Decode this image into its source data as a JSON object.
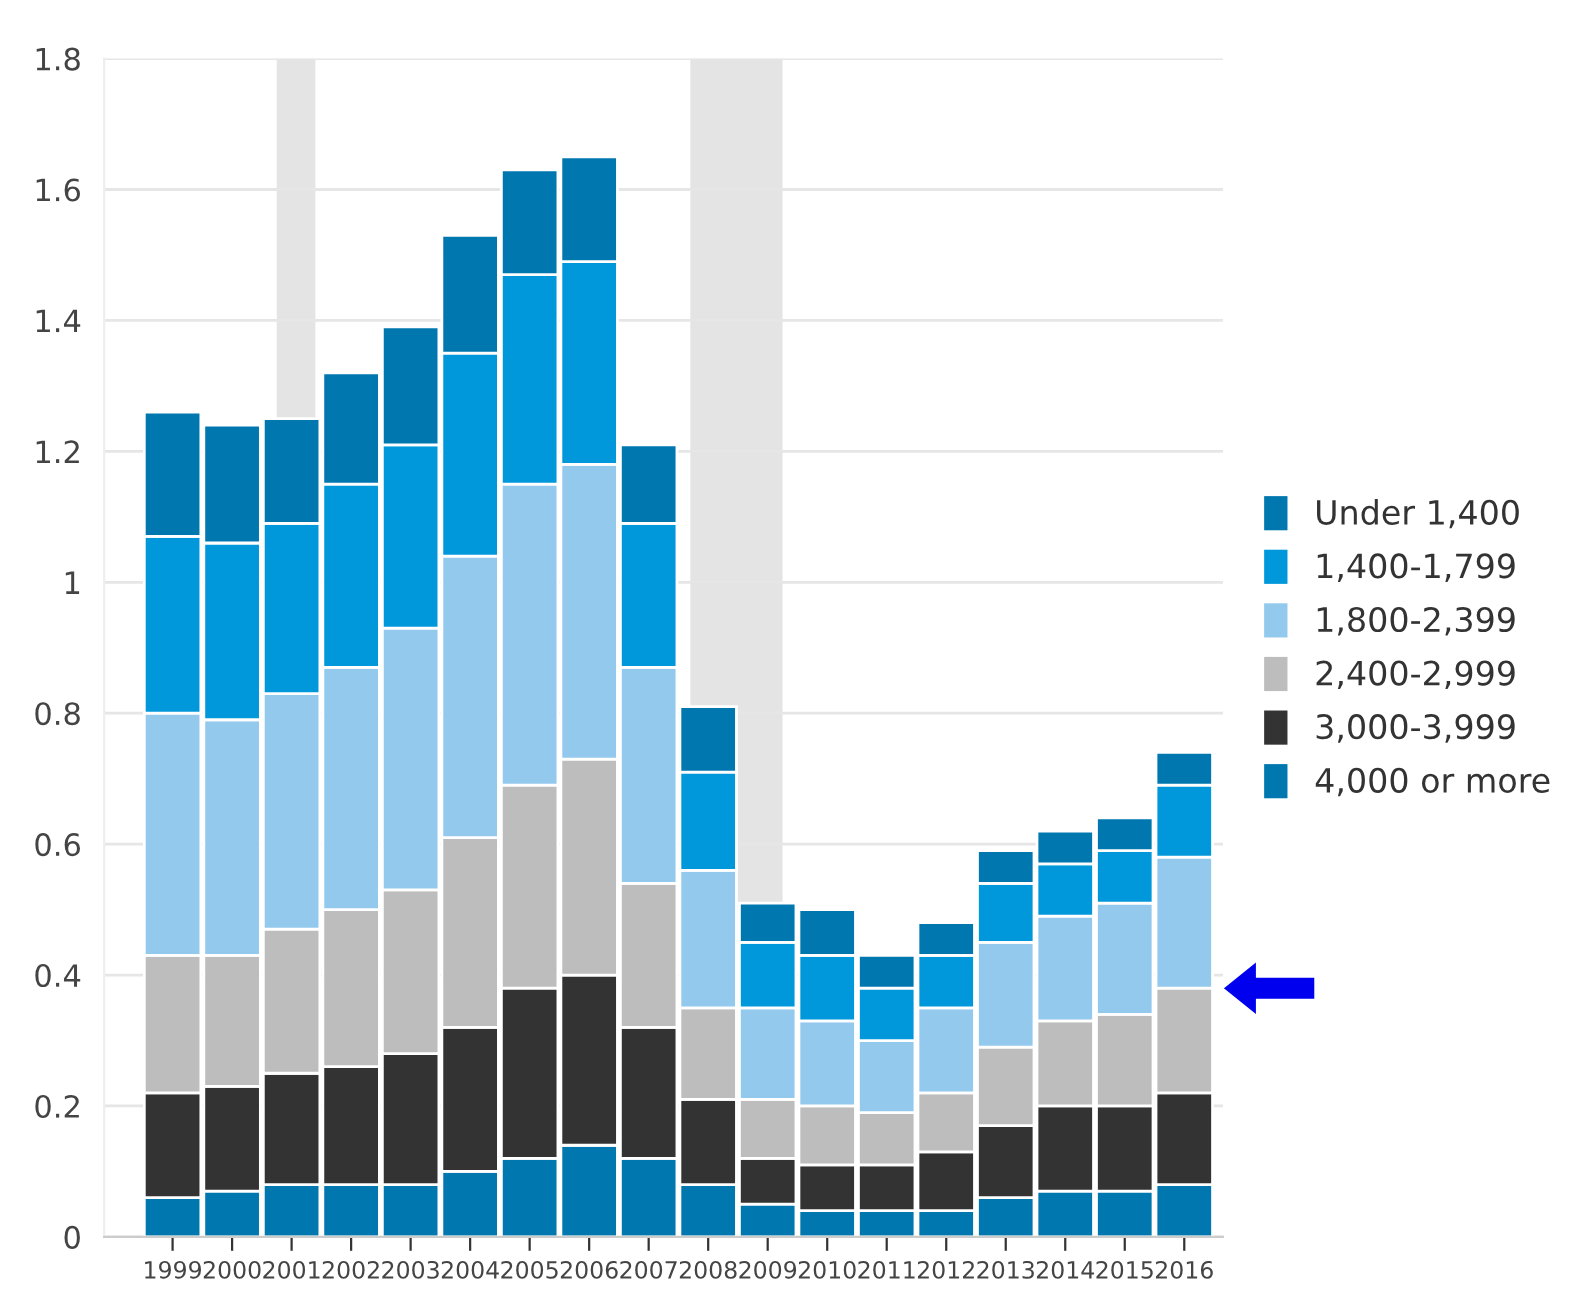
{
  "chart_data": {
    "type": "bar",
    "stacked": true,
    "x": [
      1999,
      2000,
      2001,
      2002,
      2003,
      2004,
      2005,
      2006,
      2007,
      2008,
      2009,
      2010,
      2011,
      2012,
      2013,
      2014,
      2015,
      2016
    ],
    "series": [
      {
        "name": "4,000 or more",
        "color": "#0077ae",
        "values": [
          0.06,
          0.07,
          0.08,
          0.08,
          0.08,
          0.1,
          0.12,
          0.14,
          0.12,
          0.08,
          0.05,
          0.04,
          0.04,
          0.04,
          0.06,
          0.07,
          0.07,
          0.08
        ]
      },
      {
        "name": "3,000-3,999",
        "color": "#333333",
        "values": [
          0.16,
          0.16,
          0.17,
          0.18,
          0.2,
          0.22,
          0.26,
          0.26,
          0.2,
          0.13,
          0.07,
          0.07,
          0.07,
          0.09,
          0.11,
          0.13,
          0.13,
          0.14
        ]
      },
      {
        "name": "2,400-2,999",
        "color": "#bdbdbd",
        "values": [
          0.21,
          0.2,
          0.22,
          0.24,
          0.25,
          0.29,
          0.31,
          0.33,
          0.22,
          0.14,
          0.09,
          0.09,
          0.08,
          0.09,
          0.12,
          0.13,
          0.14,
          0.16
        ]
      },
      {
        "name": "1,800-2,399",
        "color": "#94c9ee",
        "values": [
          0.37,
          0.36,
          0.36,
          0.37,
          0.4,
          0.43,
          0.46,
          0.45,
          0.33,
          0.21,
          0.14,
          0.13,
          0.11,
          0.13,
          0.16,
          0.16,
          0.17,
          0.2
        ]
      },
      {
        "name": "1,400-1,799",
        "color": "#0098db",
        "values": [
          0.27,
          0.27,
          0.26,
          0.28,
          0.28,
          0.31,
          0.32,
          0.31,
          0.22,
          0.15,
          0.1,
          0.1,
          0.08,
          0.08,
          0.09,
          0.08,
          0.08,
          0.11
        ]
      },
      {
        "name": "Under 1,400",
        "color": "#0077ae",
        "values": [
          0.19,
          0.18,
          0.16,
          0.17,
          0.18,
          0.18,
          0.16,
          0.16,
          0.12,
          0.1,
          0.06,
          0.07,
          0.05,
          0.05,
          0.05,
          0.05,
          0.05,
          0.05
        ]
      }
    ],
    "xlim": [
      1997.85,
      2016.65
    ],
    "xticks": [
      1999,
      2000,
      2001,
      2002,
      2003,
      2004,
      2005,
      2006,
      2007,
      2008,
      2009,
      2010,
      2011,
      2012,
      2013,
      2014,
      2015,
      2016
    ],
    "ylim": [
      0,
      1.8
    ],
    "yticks": [
      0,
      0.2,
      0.4,
      0.6,
      0.8,
      1,
      1.2,
      1.4,
      1.6,
      1.8
    ],
    "bands": [
      {
        "axis": "x",
        "from": 2000.75,
        "to": 2001.4,
        "color": "#e4e4e4"
      },
      {
        "axis": "x",
        "from": 2007.7,
        "to": 2009.25,
        "color": "#e4e4e4"
      }
    ],
    "grid": "y",
    "legend": "right"
  }
}
